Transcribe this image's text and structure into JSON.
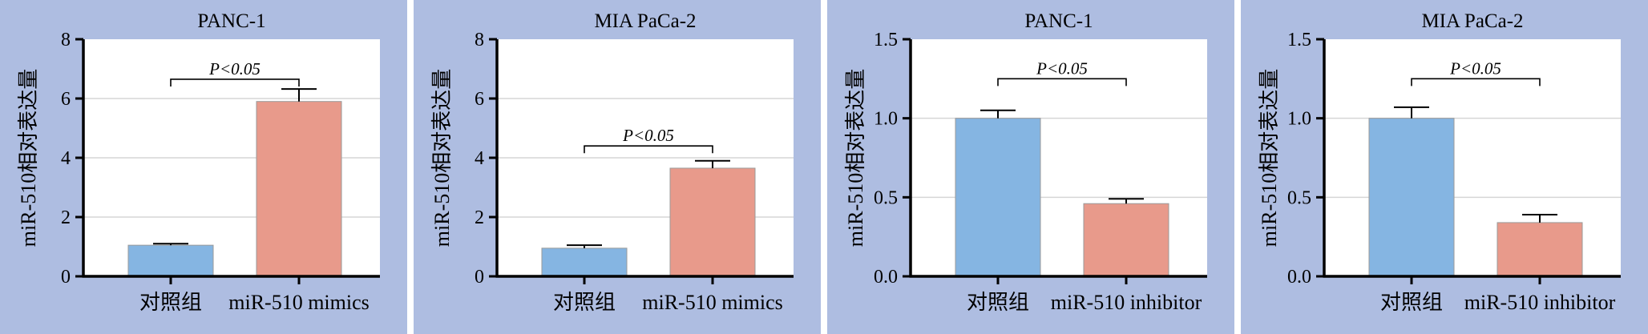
{
  "colors": {
    "panel_background": "#aebde1",
    "plot_background": "#ffffff",
    "control_bar": "#85b5e2",
    "treatment_bar": "#e89a8b",
    "gridline": "#d6d6d6",
    "axis": "#000000"
  },
  "chart_data": [
    {
      "type": "bar",
      "title": "PANC-1",
      "ylabel": "miR-510相对表达量",
      "categories": [
        "对照组",
        "miR-510 mimics"
      ],
      "values": [
        1.05,
        5.9
      ],
      "errors": [
        0.05,
        0.42
      ],
      "ylim": [
        0,
        8
      ],
      "yticks": [
        "0",
        "2",
        "4",
        "6",
        "8"
      ],
      "ytick_values": [
        0,
        2,
        4,
        6,
        8
      ],
      "grid": true,
      "significance": "P<0.05",
      "significance_level": 6.65
    },
    {
      "type": "bar",
      "title": "MIA PaCa-2",
      "ylabel": "miR-510相对表达量",
      "categories": [
        "对照组",
        "miR-510 mimics"
      ],
      "values": [
        0.95,
        3.65
      ],
      "errors": [
        0.1,
        0.25
      ],
      "ylim": [
        0,
        8
      ],
      "yticks": [
        "0",
        "2",
        "4",
        "6",
        "8"
      ],
      "ytick_values": [
        0,
        2,
        4,
        6,
        8
      ],
      "grid": true,
      "significance": "P<0.05",
      "significance_level": 4.4
    },
    {
      "type": "bar",
      "title": "PANC-1",
      "ylabel": "miR-510相对表达量",
      "categories": [
        "对照组",
        "miR-510 inhibitor"
      ],
      "values": [
        1.0,
        0.46
      ],
      "errors": [
        0.05,
        0.03
      ],
      "ylim": [
        0,
        1.5
      ],
      "yticks": [
        "0.0",
        "0.5",
        "1.0",
        "1.5"
      ],
      "ytick_values": [
        0,
        0.5,
        1.0,
        1.5
      ],
      "grid": true,
      "significance": "P<0.05",
      "significance_level": 1.25
    },
    {
      "type": "bar",
      "title": "MIA PaCa-2",
      "ylabel": "miR-510相对表达量",
      "categories": [
        "对照组",
        "miR-510 inhibitor"
      ],
      "values": [
        1.0,
        0.34
      ],
      "errors": [
        0.07,
        0.05
      ],
      "ylim": [
        0,
        1.5
      ],
      "yticks": [
        "0.0",
        "0.5",
        "1.0",
        "1.5"
      ],
      "ytick_values": [
        0,
        0.5,
        1.0,
        1.5
      ],
      "grid": true,
      "significance": "P<0.05",
      "significance_level": 1.25
    }
  ]
}
